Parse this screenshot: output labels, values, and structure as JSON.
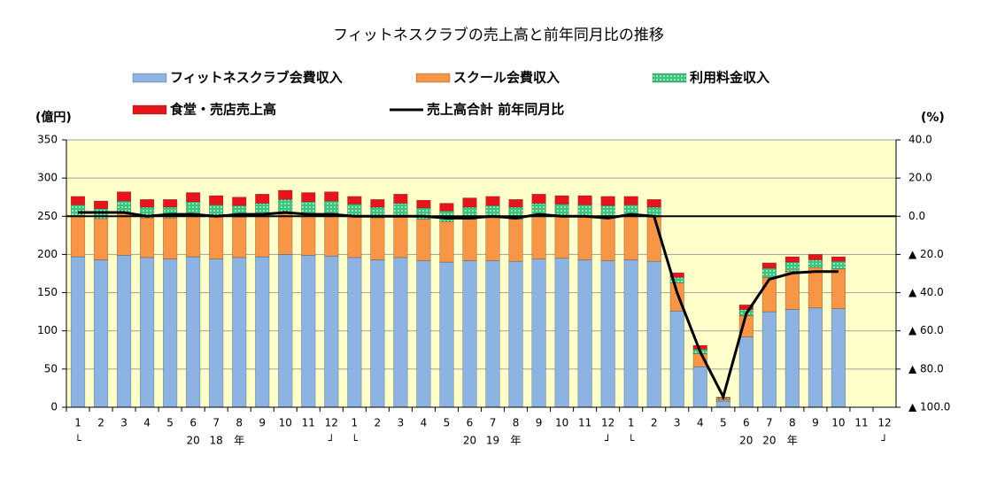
{
  "chart_data": {
    "type": "bar",
    "title": "フィットネスクラブの売上高と前年同月比の推移",
    "y_label": "(億円)",
    "y2_label": "(%)",
    "categories": [
      "1",
      "2",
      "3",
      "4",
      "5",
      "6",
      "7",
      "8",
      "9",
      "10",
      "11",
      "12",
      "1",
      "2",
      "3",
      "4",
      "5",
      "6",
      "7",
      "8",
      "9",
      "10",
      "11",
      "12",
      "1",
      "2",
      "3",
      "4",
      "5",
      "6",
      "7",
      "8",
      "9",
      "10",
      "11",
      "12"
    ],
    "x_sublabels": [
      "└",
      null,
      null,
      null,
      null,
      "20",
      "18",
      "年",
      null,
      null,
      null,
      "┘",
      "└",
      null,
      null,
      null,
      null,
      "20",
      "19",
      "年",
      null,
      null,
      null,
      "┘",
      "└",
      null,
      null,
      null,
      null,
      "20",
      "20",
      "年",
      null,
      null,
      null,
      "┘"
    ],
    "stacked": true,
    "grid": true,
    "background": "#ffffcc",
    "ylim": [
      0,
      350
    ],
    "yticks": [
      0,
      50,
      100,
      150,
      200,
      250,
      300,
      350
    ],
    "y2lim": [
      -100,
      40
    ],
    "y2ticks": [
      {
        "value": 40,
        "label": "40.0"
      },
      {
        "value": 20,
        "label": "20.0"
      },
      {
        "value": 0,
        "label": "0.0"
      },
      {
        "value": -20,
        "label": "▲ 20.0"
      },
      {
        "value": -40,
        "label": "▲ 40.0"
      },
      {
        "value": -60,
        "label": "▲ 60.0"
      },
      {
        "value": -80,
        "label": "▲ 80.0"
      },
      {
        "value": -100,
        "label": "▲ 100.0"
      }
    ],
    "series": [
      {
        "name": "フィットネスクラブ会費収入",
        "color": "#8db3e2",
        "values": [
          197,
          193,
          199,
          196,
          194,
          197,
          194,
          196,
          197,
          200,
          199,
          198,
          196,
          193,
          196,
          192,
          190,
          192,
          192,
          191,
          194,
          195,
          193,
          192,
          193,
          191,
          126,
          53,
          8,
          92,
          125,
          128,
          130,
          129,
          null,
          null
        ]
      },
      {
        "name": "スクール会費収入",
        "color": "#f79646",
        "values": [
          53,
          54,
          55,
          52,
          54,
          56,
          55,
          53,
          55,
          56,
          55,
          56,
          55,
          55,
          55,
          54,
          53,
          54,
          56,
          55,
          57,
          56,
          56,
          56,
          57,
          58,
          37,
          17,
          2,
          28,
          45,
          50,
          53,
          52,
          null,
          null
        ]
      },
      {
        "name": "利用料金収入",
        "color": "#3cc47c",
        "values": [
          15,
          13,
          16,
          14,
          14,
          16,
          16,
          15,
          15,
          16,
          15,
          16,
          15,
          14,
          16,
          15,
          14,
          16,
          16,
          16,
          16,
          15,
          16,
          16,
          15,
          13,
          7,
          6,
          2,
          8,
          12,
          12,
          10,
          10,
          null,
          null
        ]
      },
      {
        "name": "食堂・売店売上高",
        "color": "#e8141b",
        "values": [
          11,
          10,
          12,
          10,
          10,
          12,
          12,
          11,
          12,
          12,
          12,
          12,
          10,
          10,
          12,
          10,
          10,
          12,
          12,
          10,
          12,
          11,
          12,
          12,
          11,
          10,
          6,
          5,
          1,
          6,
          7,
          7,
          7,
          6,
          null,
          null
        ]
      },
      {
        "name": "売上高合計 前年同月比",
        "color": "#000000",
        "type": "line",
        "axis": "y2",
        "values": [
          2,
          2,
          2,
          0,
          1,
          1,
          0,
          1,
          1,
          2,
          1,
          1,
          0,
          0,
          0,
          0,
          -1,
          -1,
          0,
          -1,
          1,
          0,
          0,
          -1,
          1,
          0,
          -40,
          -71,
          -94.5,
          -51,
          -33,
          -29.7,
          -29,
          -29,
          null,
          null
        ]
      }
    ]
  }
}
